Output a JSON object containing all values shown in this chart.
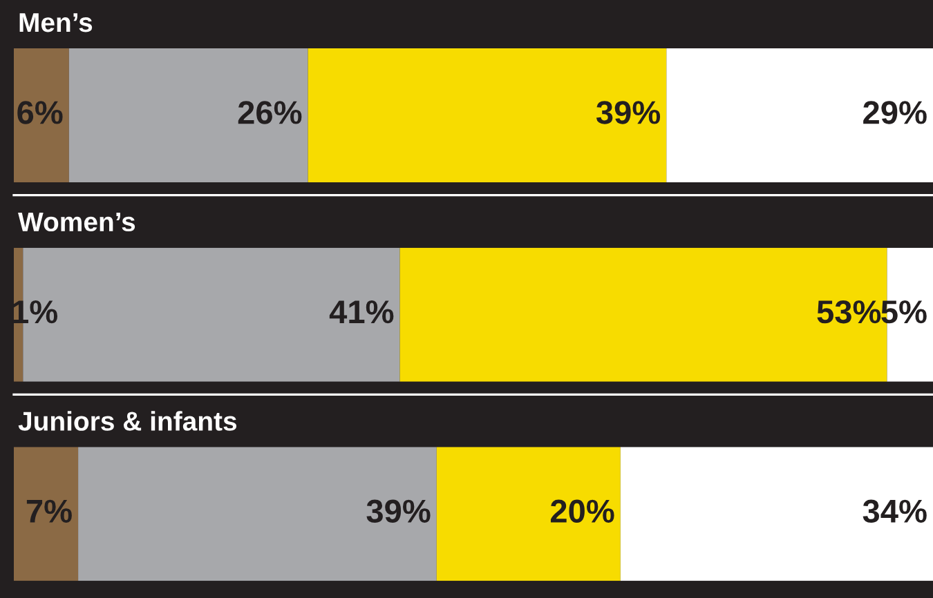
{
  "chart_data": [
    {
      "type": "bar",
      "orientation": "horizontal",
      "stacked": true,
      "title": "Men’s",
      "categories": [
        null
      ],
      "tick_labels": false,
      "series": [
        {
          "color": "#8b6a45",
          "values": [
            6
          ],
          "value_labels": [
            "6%"
          ]
        },
        {
          "color": "#a7a8ab",
          "values": [
            26
          ],
          "value_labels": [
            "26%"
          ]
        },
        {
          "color": "#f7dc00",
          "values": [
            39
          ],
          "value_labels": [
            "39%"
          ]
        },
        {
          "color": "#ffffff",
          "values": [
            29
          ],
          "value_labels": [
            "29%"
          ]
        }
      ]
    },
    {
      "type": "bar",
      "orientation": "horizontal",
      "stacked": true,
      "title": "Women’s",
      "categories": [
        null
      ],
      "tick_labels": false,
      "series": [
        {
          "color": "#8b6a45",
          "values": [
            1
          ],
          "value_labels": [
            "1%"
          ]
        },
        {
          "color": "#a7a8ab",
          "values": [
            41
          ],
          "value_labels": [
            "41%"
          ]
        },
        {
          "color": "#f7dc00",
          "values": [
            53
          ],
          "value_labels": [
            "53%"
          ]
        },
        {
          "color": "#ffffff",
          "values": [
            5
          ],
          "value_labels": [
            "5%"
          ]
        }
      ]
    },
    {
      "type": "bar",
      "orientation": "horizontal",
      "stacked": true,
      "title": "Juniors & infants",
      "categories": [
        null
      ],
      "tick_labels": false,
      "series": [
        {
          "color": "#8b6a45",
          "values": [
            7
          ],
          "value_labels": [
            "7%"
          ]
        },
        {
          "color": "#a7a8ab",
          "values": [
            39
          ],
          "value_labels": [
            "39%"
          ]
        },
        {
          "color": "#f7dc00",
          "values": [
            20
          ],
          "value_labels": [
            "20%"
          ]
        },
        {
          "color": "#ffffff",
          "values": [
            34
          ],
          "value_labels": [
            "34%"
          ]
        }
      ]
    }
  ]
}
